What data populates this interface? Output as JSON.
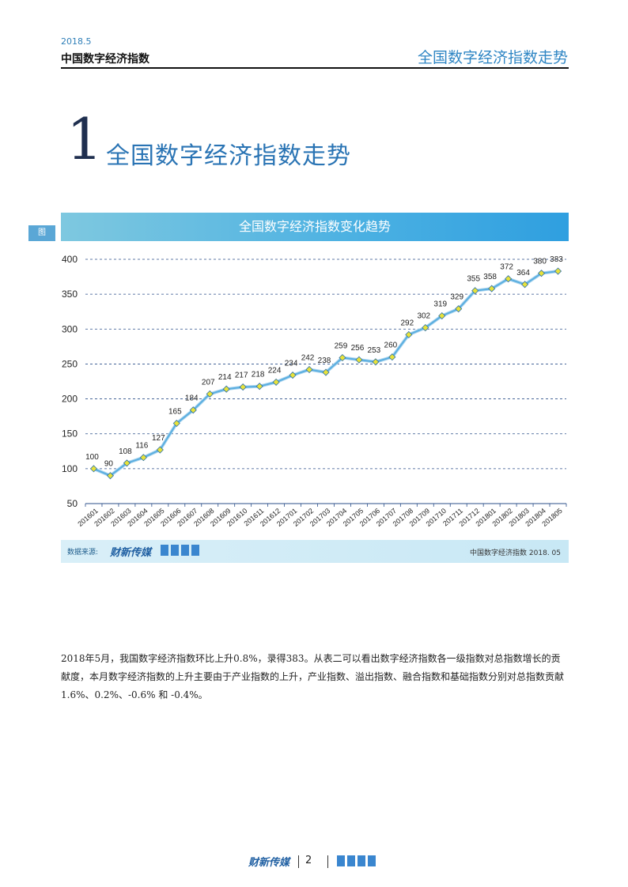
{
  "header": {
    "year": "2018.5",
    "title": "中国数字经济指数",
    "right_title": "全国数字经济指数走势"
  },
  "section": {
    "number": "1",
    "dot": ".",
    "title": "全国数字经济指数走势"
  },
  "figure": {
    "tag": "图",
    "title": "全国数字经济指数变化趋势"
  },
  "chart_data": {
    "type": "line",
    "categories": [
      "201601",
      "201602",
      "201603",
      "201604",
      "201605",
      "201606",
      "201607",
      "201608",
      "201609",
      "201610",
      "201611",
      "201612",
      "201701",
      "201702",
      "201703",
      "201704",
      "201705",
      "201706",
      "201707",
      "201708",
      "201709",
      "201710",
      "201711",
      "201712",
      "201801",
      "201802",
      "201803",
      "201804",
      "201805"
    ],
    "values": [
      100,
      90,
      108,
      116,
      127,
      165,
      184,
      207,
      214,
      217,
      218,
      224,
      234,
      242,
      238,
      259,
      256,
      253,
      260,
      292,
      302,
      319,
      329,
      355,
      358,
      372,
      364,
      380,
      383
    ],
    "ylim": [
      50,
      400
    ],
    "yticks": [
      50,
      100,
      150,
      200,
      250,
      300,
      350,
      400
    ],
    "grid": true,
    "line_color": "#5aaee0",
    "marker_color": "#e8e23a"
  },
  "source": {
    "label": "数据来源:",
    "logo_text": "财新传媒",
    "right_text": "中国数字经济指数  2018. 05"
  },
  "body": {
    "paragraph": "2018年5月，我国数字经济指数环比上升0.8%，录得383。从表二可以看出数字经济指数各一级指数对总指数增长的贡献度，本月数字经济指数的上升主要由于产业指数的上升，产业指数、溢出指数、融合指数和基础指数分别对总指数贡献 1.6%、0.2%、-0.6% 和 -0.4%。"
  },
  "footer": {
    "logo_text": "财新传媒",
    "page": "2"
  }
}
